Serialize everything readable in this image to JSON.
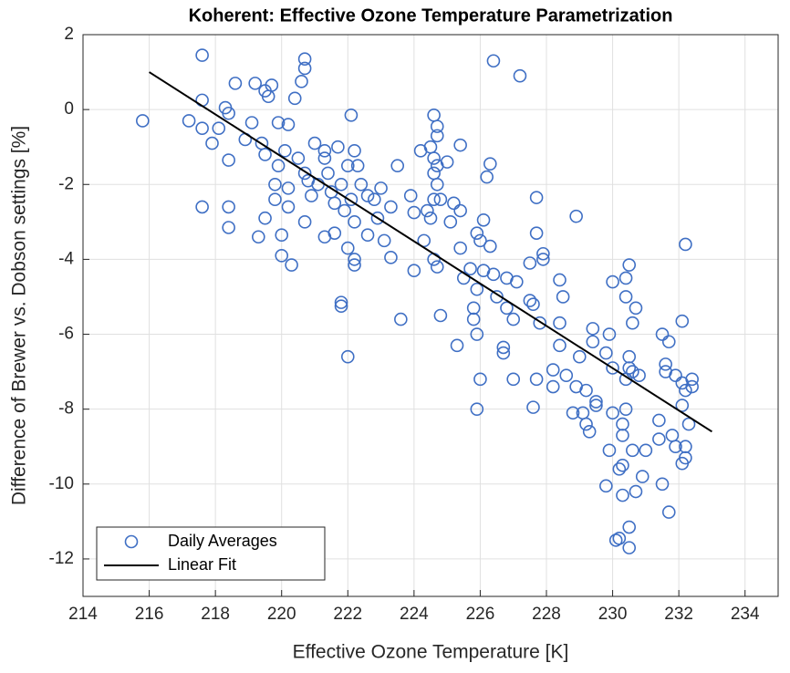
{
  "chart_data": {
    "type": "scatter",
    "title": "Koherent: Effective Ozone Temperature Parametrization",
    "x_label": "Effective Ozone Temperature [K]",
    "y_label": "Difference of Brewer vs. Dobson settings [%]",
    "xlim": [
      214,
      235
    ],
    "xticks": [
      214,
      216,
      218,
      220,
      222,
      224,
      226,
      228,
      230,
      232,
      234
    ],
    "ylim": [
      -13,
      2
    ],
    "yticks": [
      -12,
      -10,
      -8,
      -6,
      -4,
      -2,
      0,
      2
    ],
    "grid": true,
    "legend": "lower left",
    "series": [
      {
        "name": "Daily Averages",
        "color": "#3f6fc4",
        "mode": "markers",
        "x": [
          215.8,
          217.2,
          217.6,
          217.6,
          217.6,
          217.6,
          217.9,
          218.1,
          218.3,
          218.4,
          218.4,
          218.4,
          218.4,
          218.6,
          218.9,
          219.1,
          219.2,
          219.4,
          219.5,
          219.6,
          219.7,
          219.5,
          219.5,
          219.3,
          219.8,
          219.8,
          219.9,
          219.9,
          220.1,
          220.2,
          220.2,
          220.0,
          220.0,
          220.3,
          220.4,
          220.2,
          220.5,
          220.7,
          220.7,
          220.6,
          220.7,
          220.8,
          220.9,
          220.7,
          221.0,
          221.1,
          221.3,
          221.3,
          221.4,
          221.5,
          221.6,
          221.7,
          221.8,
          221.9,
          221.6,
          221.3,
          222.0,
          222.1,
          222.2,
          222.1,
          222.2,
          222.0,
          222.2,
          222.2,
          221.8,
          221.8,
          222.0,
          222.3,
          222.4,
          222.6,
          222.8,
          222.9,
          222.6,
          223.0,
          223.3,
          223.1,
          223.3,
          223.5,
          223.6,
          223.9,
          224.0,
          224.0,
          224.2,
          224.3,
          224.4,
          224.6,
          224.7,
          224.7,
          224.5,
          224.6,
          224.7,
          224.6,
          224.7,
          224.6,
          224.8,
          224.5,
          224.6,
          224.7,
          224.8,
          225.0,
          225.1,
          225.2,
          225.4,
          225.4,
          225.4,
          225.3,
          225.5,
          225.7,
          225.8,
          225.8,
          225.9,
          225.9,
          225.9,
          225.9,
          226.0,
          226.0,
          226.1,
          226.1,
          226.2,
          226.3,
          226.3,
          226.4,
          226.4,
          226.5,
          226.7,
          226.7,
          226.8,
          226.8,
          227.0,
          227.0,
          227.1,
          227.2,
          227.5,
          227.5,
          227.6,
          227.6,
          227.7,
          227.7,
          227.7,
          227.8,
          227.9,
          227.9,
          228.2,
          228.2,
          228.4,
          228.4,
          228.4,
          228.5,
          228.6,
          228.8,
          228.9,
          228.9,
          229.0,
          229.1,
          229.2,
          229.2,
          229.3,
          229.4,
          229.4,
          229.5,
          229.5,
          229.8,
          229.8,
          229.9,
          229.9,
          230.0,
          230.0,
          230.0,
          230.2,
          230.1,
          230.2,
          230.3,
          230.3,
          230.3,
          230.3,
          230.4,
          230.4,
          230.4,
          230.4,
          230.5,
          230.5,
          230.5,
          230.5,
          230.5,
          230.6,
          230.6,
          230.6,
          230.7,
          230.7,
          230.8,
          230.9,
          231.0,
          231.4,
          231.4,
          231.5,
          231.5,
          231.6,
          231.6,
          231.7,
          231.7,
          231.8,
          231.9,
          231.9,
          232.1,
          232.1,
          232.1,
          232.2,
          232.2,
          232.2,
          232.2,
          232.3,
          232.4,
          232.4,
          232.1
        ],
        "values": [
          -0.3,
          -0.3,
          1.45,
          0.25,
          -0.5,
          -2.6,
          -0.9,
          -0.5,
          0.05,
          -0.1,
          -1.35,
          -2.6,
          -3.15,
          0.7,
          -0.8,
          -0.35,
          0.7,
          -0.9,
          0.5,
          0.35,
          0.65,
          -1.2,
          -2.9,
          -3.4,
          -2.0,
          -2.4,
          -0.35,
          -1.5,
          -1.1,
          -2.1,
          -2.6,
          -3.35,
          -3.9,
          -4.15,
          0.3,
          -0.4,
          -1.3,
          1.1,
          1.35,
          0.75,
          -1.7,
          -1.9,
          -2.3,
          -3.0,
          -0.9,
          -2.0,
          -1.1,
          -1.3,
          -1.7,
          -2.2,
          -2.5,
          -1.0,
          -2.0,
          -2.7,
          -3.3,
          -3.4,
          -1.5,
          -0.15,
          -1.1,
          -2.4,
          -3.0,
          -3.7,
          -4.0,
          -4.15,
          -5.15,
          -5.25,
          -6.6,
          -1.5,
          -2.0,
          -2.3,
          -2.4,
          -2.9,
          -3.35,
          -2.1,
          -2.6,
          -3.5,
          -3.95,
          -1.5,
          -5.6,
          -2.3,
          -2.75,
          -4.3,
          -1.1,
          -3.5,
          -2.7,
          -0.15,
          -0.45,
          -0.7,
          -1.0,
          -1.3,
          -1.5,
          -1.7,
          -2.0,
          -2.4,
          -2.4,
          -2.9,
          -4.0,
          -4.2,
          -5.5,
          -1.4,
          -3.0,
          -2.5,
          -0.95,
          -2.7,
          -3.7,
          -6.3,
          -4.5,
          -4.25,
          -5.3,
          -5.6,
          -3.3,
          -4.8,
          -6.0,
          -8.0,
          -3.5,
          -7.2,
          -2.95,
          -4.3,
          -1.8,
          -1.45,
          -3.65,
          1.3,
          -4.4,
          -5.0,
          -6.35,
          -6.5,
          -5.3,
          -4.5,
          -5.6,
          -7.2,
          -4.6,
          0.9,
          -5.1,
          -4.1,
          -5.2,
          -7.95,
          -3.3,
          -2.35,
          -7.2,
          -5.7,
          -4.0,
          -3.85,
          -6.95,
          -7.4,
          -4.55,
          -5.7,
          -6.3,
          -5.0,
          -7.1,
          -8.1,
          -7.4,
          -2.85,
          -6.6,
          -8.1,
          -7.5,
          -8.4,
          -8.6,
          -6.2,
          -5.85,
          -7.9,
          -7.8,
          -6.5,
          -10.05,
          -6.0,
          -9.1,
          -4.6,
          -6.9,
          -8.1,
          -9.6,
          -11.5,
          -11.45,
          -9.5,
          -10.3,
          -8.4,
          -8.7,
          -5.0,
          -7.2,
          -8.0,
          -4.5,
          -4.15,
          -6.6,
          -6.9,
          -11.15,
          -11.7,
          -5.7,
          -7.0,
          -9.1,
          -5.3,
          -10.2,
          -7.1,
          -9.8,
          -9.1,
          -8.3,
          -8.8,
          -6.0,
          -10.0,
          -6.8,
          -7.0,
          -10.75,
          -6.2,
          -8.7,
          -7.1,
          -9.0,
          -5.65,
          -7.3,
          -7.9,
          -3.6,
          -7.5,
          -9.0,
          -9.3,
          -8.4,
          -7.2,
          -7.4,
          -9.45
        ]
      },
      {
        "name": "Linear Fit",
        "color": "#000000",
        "mode": "line",
        "x": [
          216,
          233
        ],
        "values": [
          1.0,
          -8.6
        ]
      }
    ]
  }
}
